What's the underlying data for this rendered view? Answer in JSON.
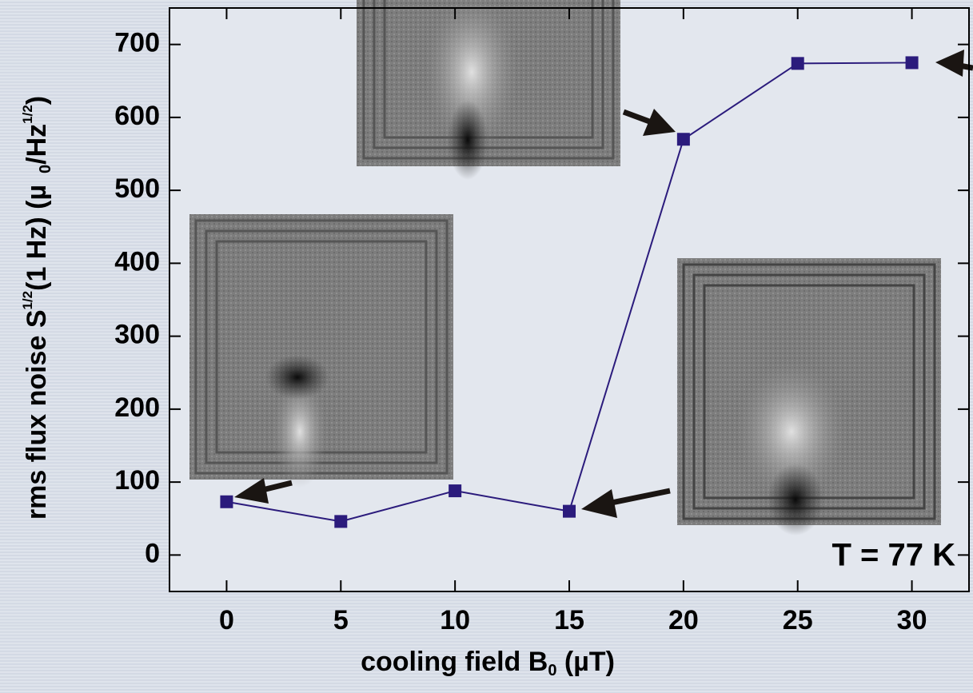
{
  "chart_data": {
    "type": "line",
    "x": [
      0,
      5,
      10,
      15,
      20,
      25,
      30
    ],
    "series": [
      {
        "color": "#2b1b7c",
        "values": [
          73,
          46,
          88,
          60,
          570,
          674,
          675
        ]
      }
    ],
    "xlim": [
      -2.5,
      32.5
    ],
    "xticks": [
      0,
      5,
      10,
      15,
      20,
      25,
      30
    ],
    "ylim": [
      -50,
      750
    ],
    "yticks": [
      0,
      100,
      200,
      300,
      400,
      500,
      600,
      700
    ],
    "xlabel_parts": [
      "cooling field B",
      "0",
      " (µT)"
    ],
    "ylabel_parts": [
      "rms flux noise S",
      "1/2",
      "(1 Hz) (µ",
      "0",
      "/Hz",
      "1/2",
      ")"
    ],
    "annotation": "T = 77 K"
  }
}
